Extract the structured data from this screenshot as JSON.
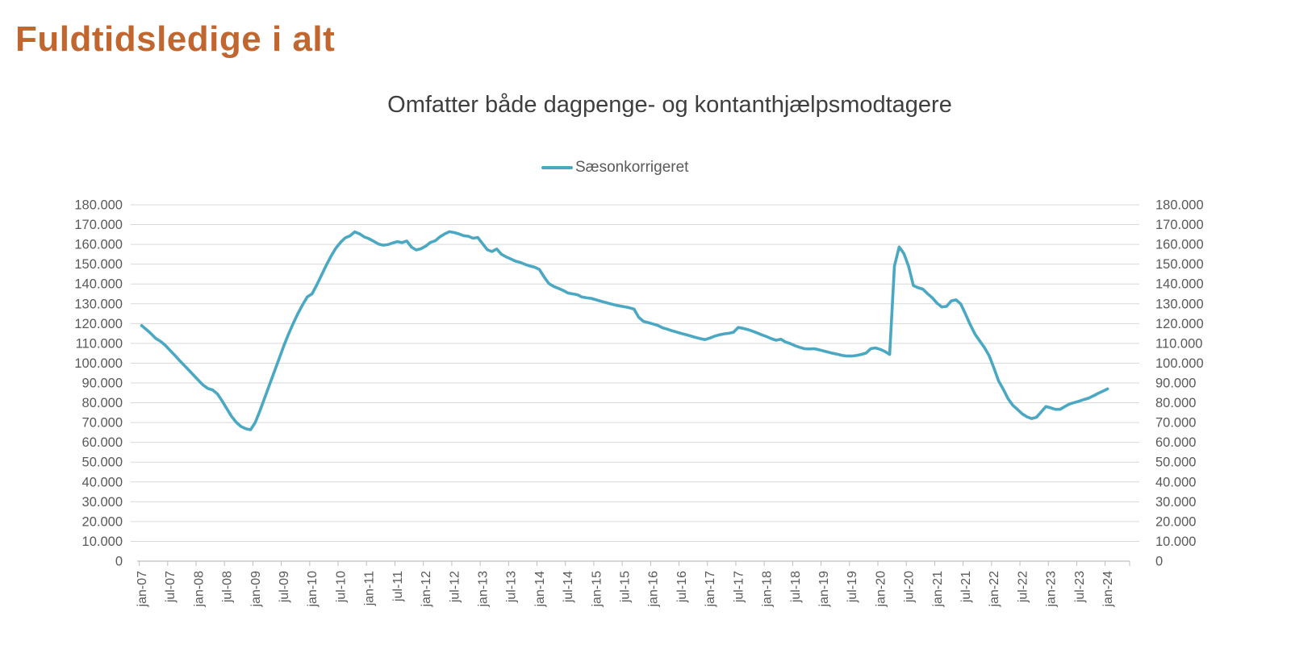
{
  "page": {
    "title": "Fuldtidsledige i alt"
  },
  "chart": {
    "subtitle": "Omfatter både dagpenge- og kontanthjælpsmodtagere",
    "legend_label": "Sæsonkorrigeret",
    "colors": {
      "page_title": "#C1662F",
      "chart_title": "#3F3F3F",
      "axis_text": "#595959",
      "gridline": "#D9D9D9",
      "axis_line": "#BFBFBF",
      "line": "#4BA8C3"
    }
  },
  "chart_data": {
    "type": "line",
    "title": "Omfatter både dagpenge- og kontanthjælpsmodtagere",
    "frequency": "monthly",
    "x_start": "jan-07",
    "x_end": "jan-24",
    "x_tick_every": 6,
    "x_tick_labels": [
      "jan-07",
      "jul-07",
      "jan-08",
      "jul-08",
      "jan-09",
      "jul-09",
      "jan-10",
      "jul-10",
      "jan-11",
      "jul-11",
      "jan-12",
      "jul-12",
      "jan-13",
      "jul-13",
      "jan-14",
      "jul-14",
      "jan-15",
      "jul-15",
      "jan-16",
      "jul-16",
      "jan-17",
      "jul-17",
      "jan-18",
      "jul-18",
      "jan-19",
      "jul-19",
      "jan-20",
      "jul-20",
      "jan-21",
      "jul-21",
      "jan-22",
      "jul-22",
      "jan-23",
      "jul-23",
      "jan-24"
    ],
    "ylim": [
      0,
      180000
    ],
    "y_tick_step": 10000,
    "y_tick_labels_top_to_bottom": [
      "180.000",
      "170.000",
      "160.000",
      "150.000",
      "140.000",
      "130.000",
      "120.000",
      "110.000",
      "100.000",
      "90.000",
      "80.000",
      "70.000",
      "60.000",
      "50.000",
      "40.000",
      "30.000",
      "20.000",
      "10.000",
      "0"
    ],
    "grid": "horizontal",
    "legend_position": "top-center",
    "dual_value_axis": true,
    "series": [
      {
        "name": "Sæsonkorrigeret",
        "color": "#4BA8C3",
        "values": [
          119000,
          117000,
          114900,
          112500,
          111000,
          109000,
          106500,
          104000,
          101400,
          98900,
          96400,
          93900,
          91400,
          88900,
          87200,
          86500,
          84500,
          80900,
          77000,
          73100,
          70100,
          68000,
          66900,
          66400,
          70000,
          76000,
          82500,
          89000,
          95500,
          102000,
          108500,
          114500,
          120000,
          125000,
          129500,
          133500,
          135000,
          139500,
          144500,
          149500,
          154000,
          158000,
          161000,
          163300,
          164300,
          166300,
          165400,
          163800,
          162900,
          161600,
          160200,
          159600,
          159900,
          160700,
          161400,
          160900,
          161700,
          158600,
          157200,
          157800,
          159100,
          161000,
          161800,
          163800,
          165300,
          166400,
          166000,
          165300,
          164400,
          164100,
          163100,
          163500,
          160400,
          157300,
          156400,
          157700,
          155000,
          153700,
          152600,
          151500,
          150900,
          149900,
          149100,
          148500,
          147400,
          143600,
          140300,
          138800,
          137800,
          136800,
          135500,
          135000,
          134600,
          133400,
          133000,
          132700,
          132000,
          131300,
          130700,
          130000,
          129400,
          128900,
          128500,
          128000,
          127300,
          123200,
          121100,
          120500,
          119800,
          119100,
          117900,
          117200,
          116400,
          115700,
          115000,
          114400,
          113700,
          113000,
          112400,
          111900,
          112700,
          113600,
          114300,
          114800,
          115100,
          115600,
          118000,
          117600,
          117000,
          116200,
          115300,
          114300,
          113400,
          112400,
          111600,
          112100,
          110700,
          109900,
          108800,
          108000,
          107300,
          107200,
          107300,
          106800,
          106200,
          105600,
          105000,
          104500,
          103900,
          103600,
          103600,
          103900,
          104400,
          105100,
          107300,
          107700,
          107000,
          105900,
          104400,
          149000,
          158700,
          155400,
          148900,
          139200,
          138100,
          137400,
          135100,
          133000,
          130300,
          128400,
          128700,
          131400,
          132000,
          129900,
          124900,
          119500,
          114700,
          111300,
          107900,
          103800,
          97700,
          91000,
          86800,
          82100,
          78700,
          76600,
          74400,
          72900,
          72000,
          72700,
          75400,
          78100,
          77400,
          76700,
          76700,
          78100,
          79400,
          80100,
          80800,
          81600,
          82300,
          83500,
          84700,
          85800,
          87000
        ]
      }
    ]
  }
}
